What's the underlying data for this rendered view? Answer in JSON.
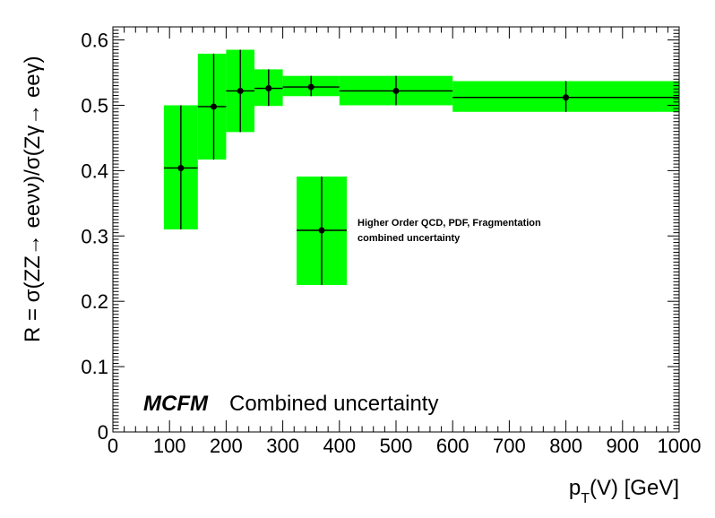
{
  "chart_data": {
    "type": "scatter",
    "xlabel": "p_T(V) [GeV]",
    "ylabel": "R = σ(ZZ→ eeνν)/σ(Zγ→ eeγ)",
    "xlim": [
      0,
      1000
    ],
    "ylim": [
      0,
      0.62
    ],
    "x_ticks": [
      "0",
      "100",
      "200",
      "300",
      "400",
      "500",
      "600",
      "700",
      "800",
      "900",
      "1000"
    ],
    "y_ticks": [
      "0",
      "0.1",
      "0.2",
      "0.3",
      "0.4",
      "0.5",
      "0.6"
    ],
    "grid": false,
    "band_color": "#00ff00",
    "marker_color": "#000000",
    "annotation": {
      "bold": "MCFM",
      "text": "Combined uncertainty"
    },
    "legend": {
      "line1": "Higher Order QCD, PDF, Fragmentation",
      "line2": "combined uncertainty"
    },
    "series": [
      {
        "points": [
          {
            "x": 120,
            "xlo": 90,
            "xhi": 150,
            "y": 0.404,
            "ylo": 0.31,
            "yhi": 0.5
          },
          {
            "x": 178,
            "xlo": 150,
            "xhi": 200,
            "y": 0.498,
            "ylo": 0.417,
            "yhi": 0.579
          },
          {
            "x": 225,
            "xlo": 200,
            "xhi": 250,
            "y": 0.522,
            "ylo": 0.459,
            "yhi": 0.585
          },
          {
            "x": 275,
            "xlo": 250,
            "xhi": 300,
            "y": 0.526,
            "ylo": 0.499,
            "yhi": 0.555
          },
          {
            "x": 350,
            "xlo": 300,
            "xhi": 400,
            "y": 0.528,
            "ylo": 0.514,
            "yhi": 0.545
          },
          {
            "x": 500,
            "xlo": 400,
            "xhi": 600,
            "y": 0.522,
            "ylo": 0.5,
            "yhi": 0.545
          },
          {
            "x": 800,
            "xlo": 600,
            "xhi": 1000,
            "y": 0.512,
            "ylo": 0.49,
            "yhi": 0.537
          }
        ]
      }
    ]
  }
}
